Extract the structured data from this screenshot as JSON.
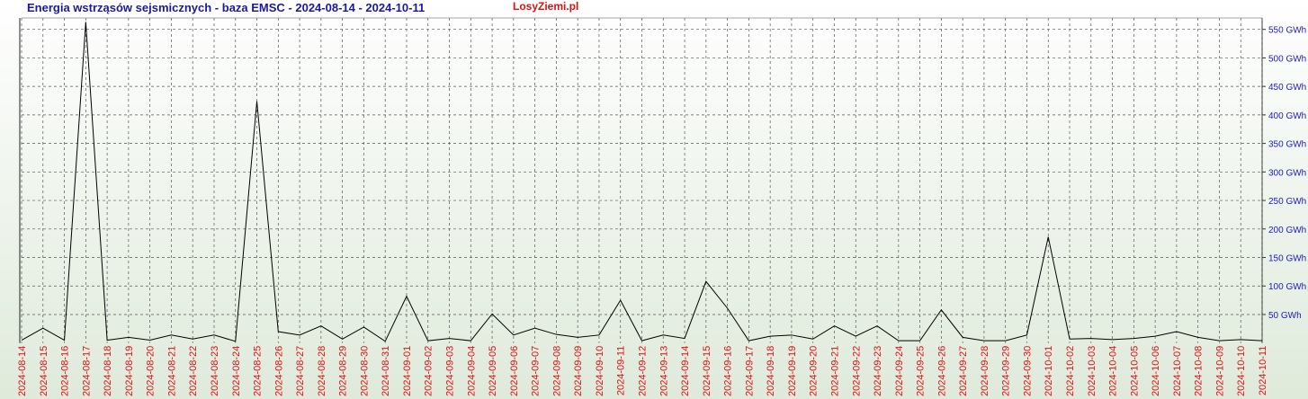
{
  "chart_data": {
    "type": "line",
    "title": "Energia wstrząsów sejsmicznych - baza EMSC - 2024-08-14 - 2024-10-11",
    "watermark": "LosyZiemi.pl",
    "categories": [
      "2024-08-14",
      "2024-08-15",
      "2024-08-16",
      "2024-08-17",
      "2024-08-18",
      "2024-08-19",
      "2024-08-20",
      "2024-08-21",
      "2024-08-22",
      "2024-08-23",
      "2024-08-24",
      "2024-08-25",
      "2024-08-26",
      "2024-08-27",
      "2024-08-28",
      "2024-08-29",
      "2024-08-30",
      "2024-08-31",
      "2024-09-01",
      "2024-09-02",
      "2024-09-03",
      "2024-09-04",
      "2024-09-05",
      "2024-09-06",
      "2024-09-07",
      "2024-09-08",
      "2024-09-09",
      "2024-09-10",
      "2024-09-11",
      "2024-09-12",
      "2024-09-13",
      "2024-09-14",
      "2024-09-15",
      "2024-09-16",
      "2024-09-17",
      "2024-09-18",
      "2024-09-19",
      "2024-09-20",
      "2024-09-21",
      "2024-09-22",
      "2024-09-23",
      "2024-09-24",
      "2024-09-25",
      "2024-09-26",
      "2024-09-27",
      "2024-09-28",
      "2024-09-29",
      "2024-09-30",
      "2024-10-01",
      "2024-10-02",
      "2024-10-03",
      "2024-10-04",
      "2024-10-05",
      "2024-10-06",
      "2024-10-07",
      "2024-10-08",
      "2024-10-09",
      "2024-10-10",
      "2024-10-11"
    ],
    "values": [
      5,
      26,
      5,
      563,
      5,
      10,
      5,
      14,
      7,
      14,
      3,
      424,
      20,
      14,
      30,
      7,
      28,
      3,
      82,
      4,
      8,
      4,
      51,
      14,
      26,
      15,
      10,
      14,
      75,
      4,
      14,
      8,
      108,
      61,
      4,
      12,
      14,
      7,
      30,
      12,
      30,
      4,
      4,
      58,
      10,
      4,
      4,
      14,
      186,
      7,
      8,
      6,
      8,
      12,
      20,
      10,
      4,
      6,
      4
    ],
    "color": "#000000",
    "ylim": [
      0,
      570
    ],
    "yticks": [
      {
        "value": 50,
        "label": "50 GWh"
      },
      {
        "value": 100,
        "label": "100 GWh"
      },
      {
        "value": 150,
        "label": "150 GWh"
      },
      {
        "value": 200,
        "label": "200 GWh"
      },
      {
        "value": 250,
        "label": "250 GWh"
      },
      {
        "value": 300,
        "label": "300 GWh"
      },
      {
        "value": 350,
        "label": "350 GWh"
      },
      {
        "value": 400,
        "label": "400 GWh"
      },
      {
        "value": 450,
        "label": "450 GWh"
      },
      {
        "value": 500,
        "label": "500 GWh"
      },
      {
        "value": 550,
        "label": "550 GWh"
      }
    ],
    "grid": true
  }
}
